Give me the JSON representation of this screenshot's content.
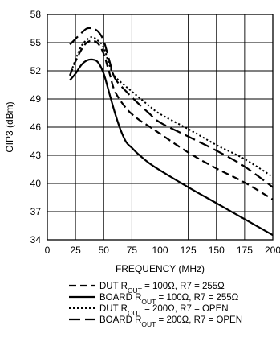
{
  "chart_data": {
    "type": "line",
    "xlabel": "FREQUENCY (MHz)",
    "ylabel": "OIP3 (dBm)",
    "xlim": [
      0,
      200
    ],
    "ylim": [
      34,
      58
    ],
    "xticks": [
      "0",
      "25",
      "50",
      "75",
      "100",
      "125",
      "150",
      "175",
      "200"
    ],
    "yticks": [
      "34",
      "37",
      "40",
      "43",
      "46",
      "49",
      "52",
      "55",
      "58"
    ],
    "grid": true,
    "legend_position": "bottom",
    "series": [
      {
        "name": "DUT R",
        "name_sub": "OUT",
        "name_rest": " = 100Ω, R7 = 255Ω",
        "style": "dashed",
        "x": [
          20,
          25,
          30,
          35,
          40,
          45,
          50,
          55,
          60,
          70,
          80,
          90,
          100,
          125,
          150,
          175,
          200
        ],
        "y": [
          51.5,
          53.0,
          54.2,
          55.0,
          55.2,
          54.9,
          53.8,
          51.8,
          49.8,
          48.0,
          46.9,
          46.1,
          45.3,
          43.3,
          41.6,
          40.1,
          38.3
        ]
      },
      {
        "name": "BOARD R",
        "name_sub": "OUT",
        "name_rest": " = 100Ω, R7 = 255Ω",
        "style": "solid",
        "x": [
          20,
          25,
          30,
          35,
          40,
          45,
          50,
          55,
          60,
          65,
          70,
          75,
          80,
          90,
          100,
          125,
          150,
          175,
          200
        ],
        "y": [
          51.0,
          51.7,
          52.6,
          53.1,
          53.2,
          52.9,
          51.7,
          49.6,
          47.5,
          45.7,
          44.4,
          43.8,
          43.2,
          42.2,
          41.4,
          39.6,
          37.9,
          36.2,
          34.5
        ]
      },
      {
        "name": "DUT R",
        "name_sub": "OUT",
        "name_rest": " = 200Ω, R7 = OPEN",
        "style": "dotted",
        "x": [
          20,
          25,
          30,
          35,
          40,
          45,
          50,
          55,
          60,
          70,
          80,
          90,
          100,
          125,
          150,
          175,
          200
        ],
        "y": [
          51.5,
          53.2,
          54.6,
          55.3,
          55.6,
          55.2,
          54.5,
          52.6,
          51.4,
          50.3,
          49.3,
          48.3,
          47.4,
          45.8,
          44.1,
          42.6,
          40.7
        ]
      },
      {
        "name": "BOARD R",
        "name_sub": "OUT",
        "name_rest": " = 200Ω, R7 = OPEN",
        "style": "longdash",
        "x": [
          20,
          25,
          30,
          35,
          40,
          45,
          50,
          55,
          60,
          70,
          80,
          90,
          100,
          125,
          150,
          175,
          200
        ],
        "y": [
          54.8,
          55.4,
          56.0,
          56.5,
          56.5,
          56.2,
          55.2,
          53.1,
          51.2,
          49.8,
          48.6,
          47.5,
          46.5,
          45.0,
          43.5,
          41.8,
          39.6
        ]
      }
    ]
  }
}
